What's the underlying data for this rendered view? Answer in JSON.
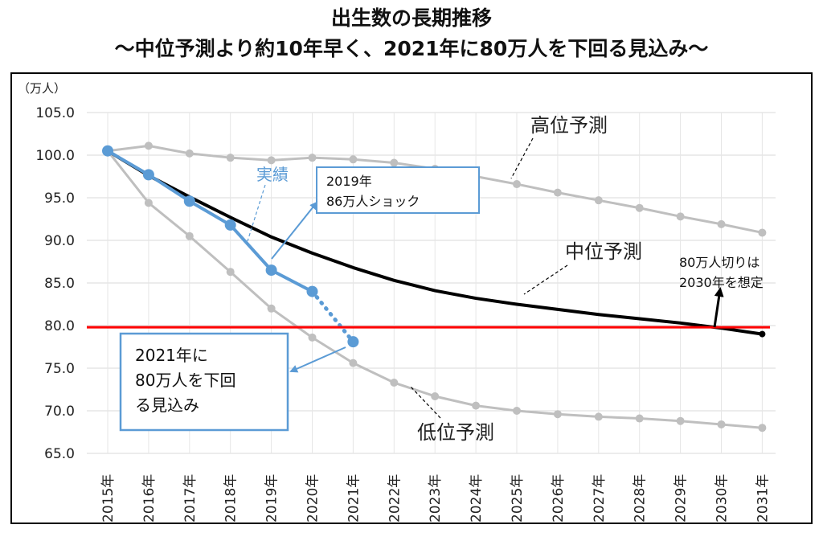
{
  "titles": {
    "main": "出生数の長期推移",
    "sub": "～中位予測より約10年早く、2021年に80万人を下回る見込み～"
  },
  "chart_data": {
    "type": "line",
    "title": "出生数の長期推移",
    "subtitle": "～中位予測より約10年早く、2021年に80万人を下回る見込み～",
    "ylabel": "（万人）",
    "xlabel": "",
    "ylim": [
      65,
      105
    ],
    "yticks": [
      "65.0",
      "70.0",
      "75.0",
      "80.0",
      "85.0",
      "90.0",
      "95.0",
      "100.0",
      "105.0"
    ],
    "categories": [
      "2015年",
      "2016年",
      "2017年",
      "2018年",
      "2019年",
      "2020年",
      "2021年",
      "2022年",
      "2023年",
      "2024年",
      "2025年",
      "2026年",
      "2027年",
      "2028年",
      "2029年",
      "2030年",
      "2031年"
    ],
    "grid": true,
    "series": [
      {
        "name": "高位予測",
        "color": "#bfbfbf",
        "values": [
          100.5,
          101.1,
          100.2,
          99.7,
          99.4,
          99.7,
          99.5,
          99.1,
          98.4,
          97.5,
          96.6,
          95.6,
          94.7,
          93.8,
          92.8,
          91.9,
          90.9
        ]
      },
      {
        "name": "中位予測",
        "color": "#000000",
        "values": [
          100.5,
          97.6,
          95.1,
          92.7,
          90.4,
          88.5,
          86.8,
          85.3,
          84.1,
          83.2,
          82.5,
          81.9,
          81.3,
          80.8,
          80.3,
          79.7,
          79.0
        ]
      },
      {
        "name": "低位予測",
        "color": "#bfbfbf",
        "values": [
          100.5,
          94.4,
          90.5,
          86.3,
          82.0,
          78.6,
          75.6,
          73.3,
          71.7,
          70.6,
          70.0,
          69.6,
          69.3,
          69.1,
          68.8,
          68.4,
          68.0
        ]
      },
      {
        "name": "実績",
        "color": "#5b9bd5",
        "values": [
          100.5,
          97.7,
          94.6,
          91.8,
          86.5,
          84.0,
          null,
          null,
          null,
          null,
          null,
          null,
          null,
          null,
          null,
          null,
          null
        ]
      }
    ],
    "estimate": {
      "from_index": 5,
      "to_index": 6,
      "from_value": 84.0,
      "to_value": 78.1,
      "color": "#5b9bd5"
    },
    "reference_line": {
      "value": 79.8,
      "color": "#ff0000"
    },
    "annotations": {
      "high": "高位予測",
      "mid": "中位予測",
      "low": "低位予測",
      "actual": "実績",
      "shock_box": [
        "2019年",
        "86万人ショック"
      ],
      "below80_box": [
        "2021年に",
        "80万人を下回",
        "る見込み"
      ],
      "cut80": [
        "80万人切りは",
        "2030年を想定"
      ]
    }
  }
}
